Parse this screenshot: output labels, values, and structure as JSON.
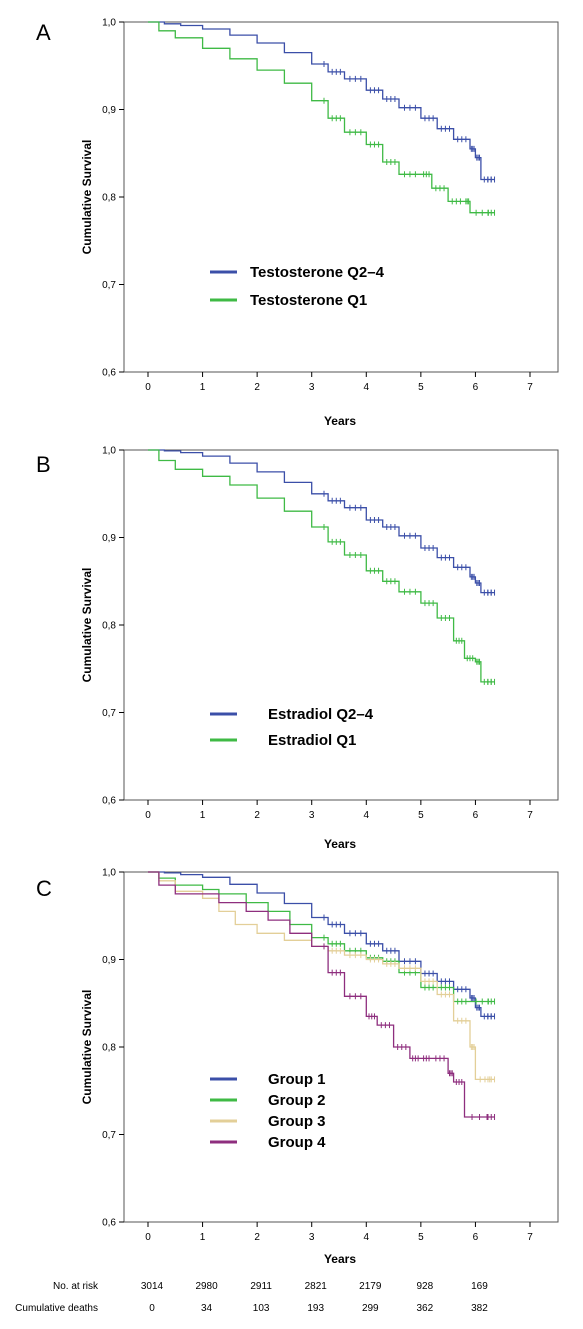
{
  "risk_table": {
    "row_labels": [
      "No. at risk",
      "Cumulative deaths"
    ],
    "x": [
      0,
      1,
      2,
      3,
      4,
      5,
      6
    ],
    "at_risk": [
      "3014",
      "2980",
      "2911",
      "2821",
      "2179",
      "928",
      "169"
    ],
    "deaths": [
      "0",
      "34",
      "103",
      "193",
      "299",
      "362",
      "382"
    ]
  },
  "chart_data": [
    {
      "type": "line",
      "panel": "A",
      "xlabel": "Years",
      "ylabel": "Cumulative Survival",
      "xlim": [
        0,
        7
      ],
      "ylim": [
        0.6,
        1.0
      ],
      "xticks": [
        "0",
        "1",
        "2",
        "3",
        "4",
        "5",
        "6",
        "7"
      ],
      "yticks": [
        "0,6",
        "0,7",
        "0,8",
        "0,9",
        "1,0"
      ],
      "grid": false,
      "legend": "center-left",
      "series": [
        {
          "name": "Testosterone Q2–4",
          "color": "#3b4fa8",
          "x": [
            0,
            0.3,
            0.6,
            1,
            1.5,
            2,
            2.5,
            3,
            3.3,
            3.6,
            4,
            4.3,
            4.6,
            5,
            5.3,
            5.6,
            5.9,
            6.0,
            6.1,
            6.35
          ],
          "y": [
            1.0,
            0.998,
            0.996,
            0.992,
            0.985,
            0.976,
            0.965,
            0.952,
            0.943,
            0.935,
            0.922,
            0.912,
            0.902,
            0.89,
            0.878,
            0.866,
            0.855,
            0.845,
            0.82,
            0.82
          ]
        },
        {
          "name": "Testosterone Q1",
          "color": "#3fba45",
          "x": [
            0,
            0.2,
            0.5,
            1,
            1.5,
            2,
            2.5,
            3,
            3.3,
            3.6,
            4,
            4.3,
            4.6,
            5,
            5.2,
            5.5,
            5.8,
            5.9,
            6.35
          ],
          "y": [
            1.0,
            0.99,
            0.982,
            0.97,
            0.958,
            0.945,
            0.93,
            0.91,
            0.89,
            0.874,
            0.86,
            0.84,
            0.826,
            0.826,
            0.81,
            0.795,
            0.795,
            0.782,
            0.782
          ]
        }
      ]
    },
    {
      "type": "line",
      "panel": "B",
      "xlabel": "Years",
      "ylabel": "Cumulative Survival",
      "xlim": [
        0,
        7
      ],
      "ylim": [
        0.6,
        1.0
      ],
      "xticks": [
        "0",
        "1",
        "2",
        "3",
        "4",
        "5",
        "6",
        "7"
      ],
      "yticks": [
        "0,6",
        "0,7",
        "0,8",
        "0,9",
        "1,0"
      ],
      "grid": false,
      "legend": "center-left",
      "series": [
        {
          "name": "Estradiol Q2–4",
          "color": "#3b4fa8",
          "x": [
            0,
            0.3,
            0.6,
            1,
            1.5,
            2,
            2.5,
            3,
            3.3,
            3.6,
            4,
            4.3,
            4.6,
            5,
            5.3,
            5.6,
            5.9,
            6.0,
            6.1,
            6.35
          ],
          "y": [
            1.0,
            0.999,
            0.997,
            0.993,
            0.985,
            0.975,
            0.963,
            0.95,
            0.942,
            0.934,
            0.92,
            0.912,
            0.902,
            0.888,
            0.877,
            0.866,
            0.855,
            0.848,
            0.837,
            0.837
          ]
        },
        {
          "name": "Estradiol Q1",
          "color": "#3fba45",
          "x": [
            0,
            0.2,
            0.5,
            1,
            1.5,
            2,
            2.5,
            3,
            3.3,
            3.6,
            4,
            4.3,
            4.6,
            5,
            5.3,
            5.6,
            5.8,
            6.0,
            6.1,
            6.35
          ],
          "y": [
            1.0,
            0.988,
            0.978,
            0.97,
            0.96,
            0.945,
            0.93,
            0.912,
            0.895,
            0.88,
            0.862,
            0.85,
            0.838,
            0.825,
            0.808,
            0.782,
            0.762,
            0.758,
            0.735,
            0.735
          ]
        }
      ]
    },
    {
      "type": "line",
      "panel": "C",
      "xlabel": "Years",
      "ylabel": "Cumulative Survival",
      "xlim": [
        0,
        7
      ],
      "ylim": [
        0.6,
        1.0
      ],
      "xticks": [
        "0",
        "1",
        "2",
        "3",
        "4",
        "5",
        "6",
        "7"
      ],
      "yticks": [
        "0,6",
        "0,7",
        "0,8",
        "0,9",
        "1,0"
      ],
      "grid": false,
      "legend": "center-left",
      "series": [
        {
          "name": "Group 1",
          "color": "#3b4fa8",
          "x": [
            0,
            0.3,
            0.6,
            1,
            1.5,
            2,
            2.5,
            3,
            3.3,
            3.6,
            4,
            4.3,
            4.6,
            5,
            5.3,
            5.6,
            5.9,
            6.0,
            6.1,
            6.35
          ],
          "y": [
            1.0,
            0.999,
            0.997,
            0.994,
            0.986,
            0.976,
            0.964,
            0.948,
            0.94,
            0.93,
            0.918,
            0.91,
            0.898,
            0.884,
            0.875,
            0.866,
            0.856,
            0.845,
            0.835,
            0.835
          ]
        },
        {
          "name": "Group 2",
          "color": "#3fba45",
          "x": [
            0,
            0.2,
            0.5,
            1,
            1.3,
            1.8,
            2.2,
            2.6,
            3,
            3.3,
            3.6,
            4,
            4.3,
            4.6,
            5,
            5.3,
            5.6,
            5.9,
            6.35
          ],
          "y": [
            1.0,
            0.993,
            0.985,
            0.98,
            0.975,
            0.965,
            0.955,
            0.94,
            0.925,
            0.918,
            0.91,
            0.902,
            0.898,
            0.885,
            0.868,
            0.868,
            0.852,
            0.852,
            0.852
          ]
        },
        {
          "name": "Group 3",
          "color": "#e3cf98",
          "x": [
            0,
            0.2,
            0.5,
            1,
            1.3,
            1.6,
            2,
            2.5,
            3,
            3.3,
            3.6,
            4,
            4.3,
            4.6,
            5,
            5.3,
            5.6,
            5.9,
            6.0,
            6.35
          ],
          "y": [
            1.0,
            0.99,
            0.978,
            0.97,
            0.955,
            0.94,
            0.93,
            0.922,
            0.915,
            0.91,
            0.905,
            0.9,
            0.895,
            0.89,
            0.875,
            0.86,
            0.83,
            0.8,
            0.763,
            0.763
          ]
        },
        {
          "name": "Group 4",
          "color": "#8e2e7e",
          "x": [
            0,
            0.2,
            0.5,
            1,
            1.3,
            1.8,
            2.2,
            2.6,
            3,
            3.3,
            3.6,
            4,
            4.2,
            4.5,
            4.8,
            5,
            5.2,
            5.5,
            5.6,
            5.8,
            6.35
          ],
          "y": [
            1.0,
            0.985,
            0.975,
            0.975,
            0.965,
            0.955,
            0.945,
            0.93,
            0.915,
            0.885,
            0.858,
            0.835,
            0.825,
            0.8,
            0.787,
            0.787,
            0.787,
            0.77,
            0.76,
            0.72,
            0.72
          ]
        }
      ]
    }
  ]
}
